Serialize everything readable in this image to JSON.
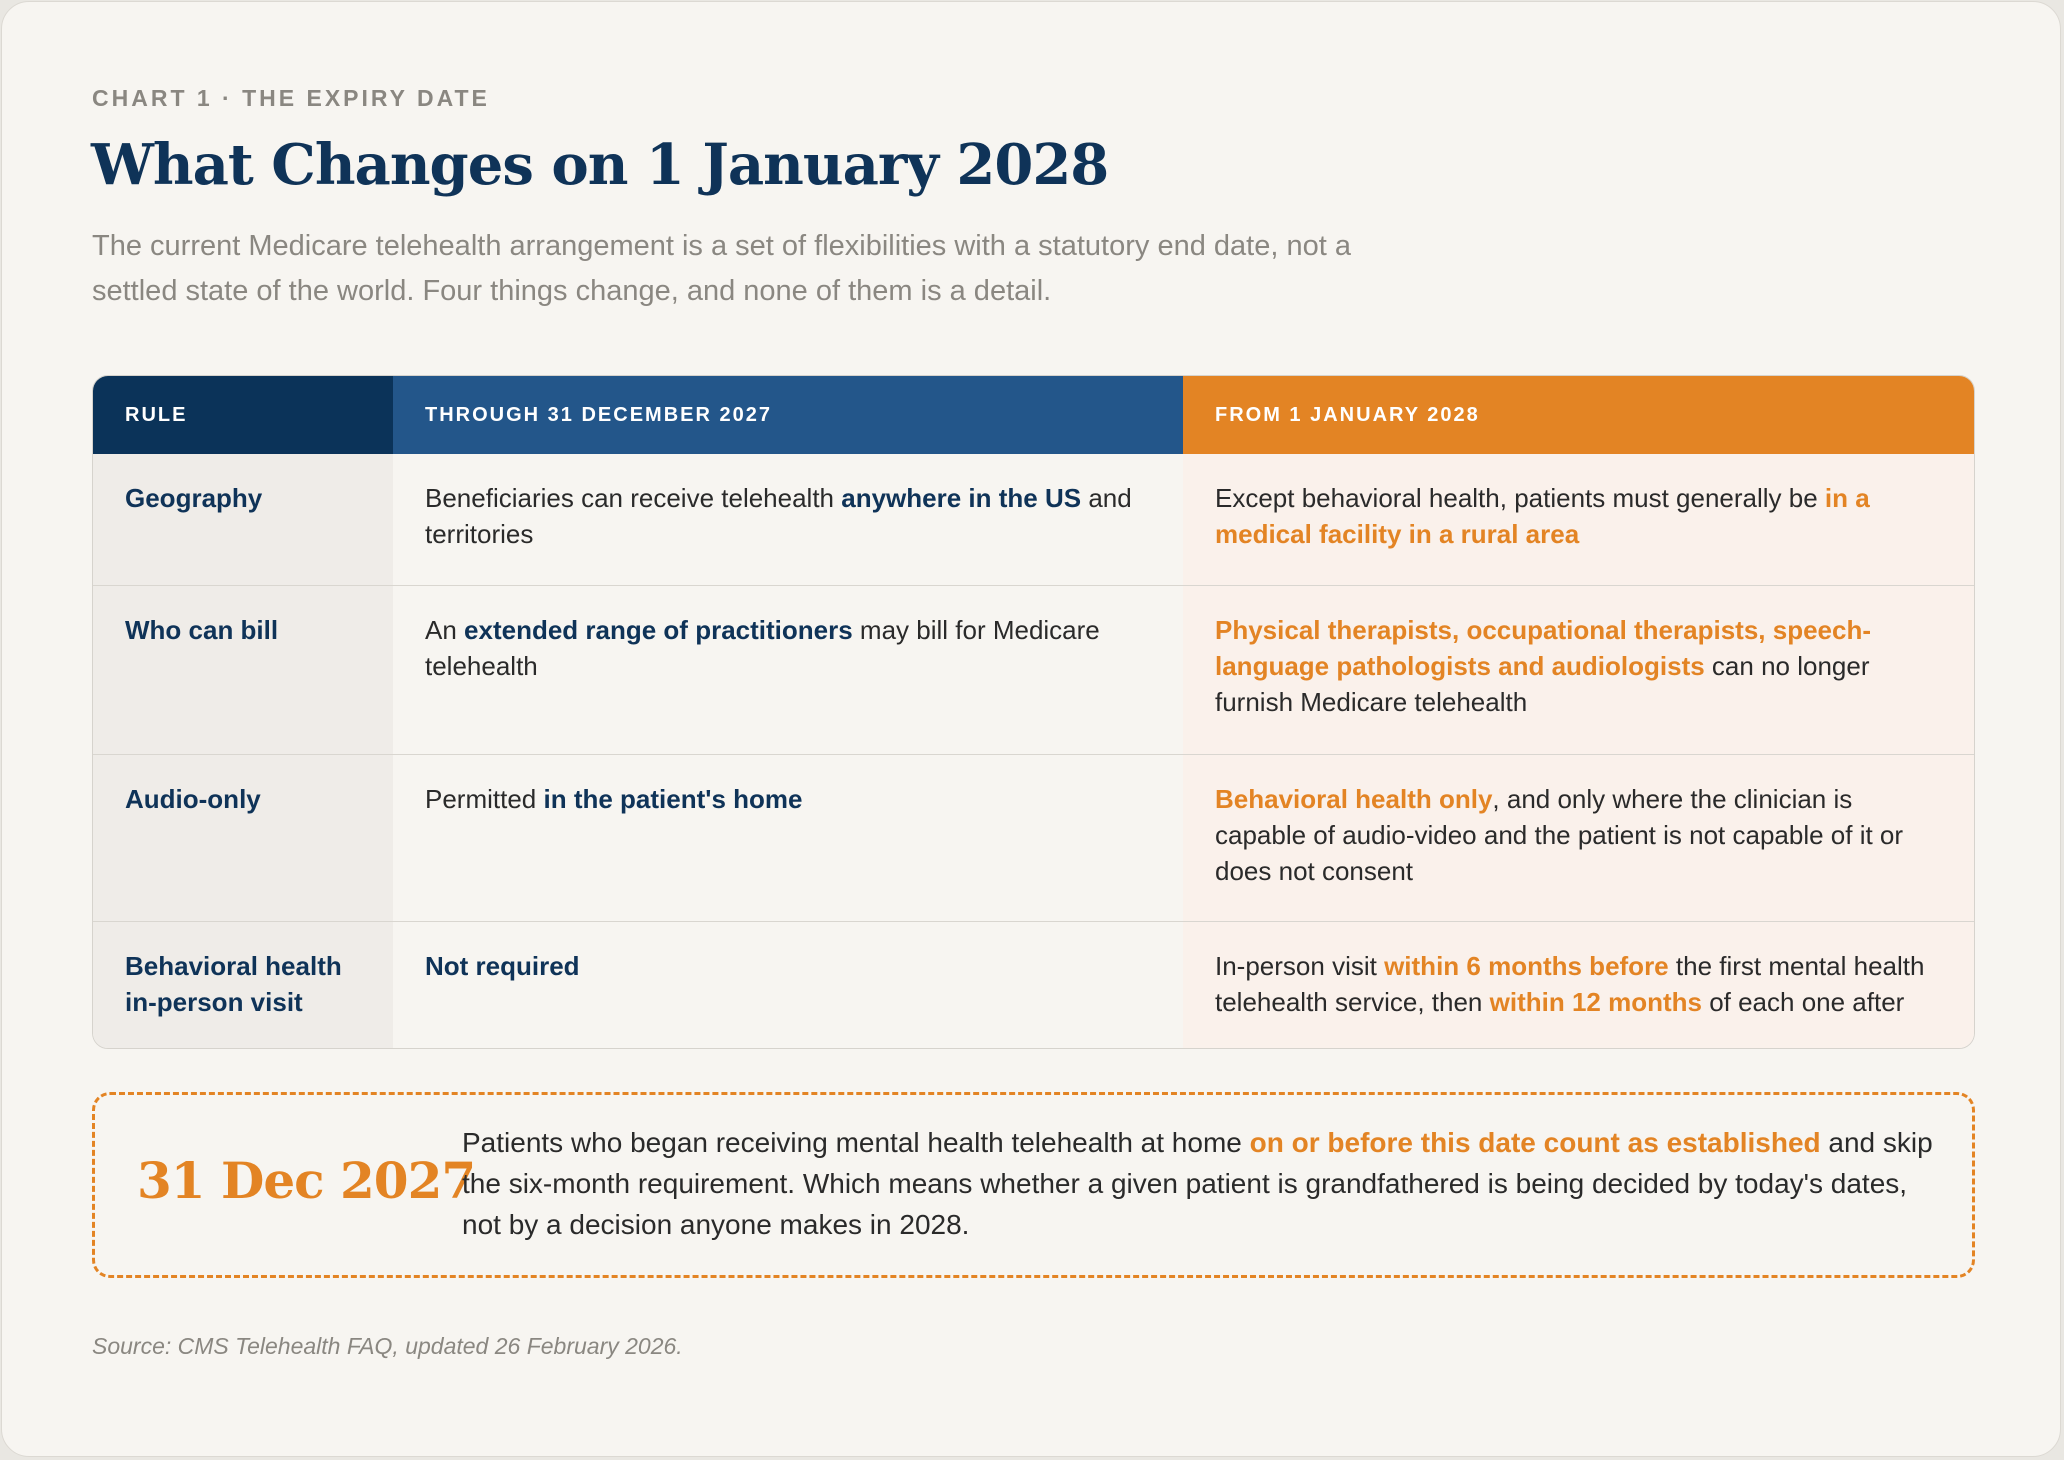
{
  "header": {
    "eyebrow": "CHART 1 · THE EXPIRY DATE",
    "title": "What Changes on 1 January 2028",
    "subtitle": "The current Medicare telehealth arrangement is a set of flexibilities with a statutory end date, not a settled state of the world. Four things change, and none of them is a detail."
  },
  "colors": {
    "navy": "#0b3359",
    "blue": "#23568a",
    "orange": "#e38424"
  },
  "table": {
    "columns": [
      "RULE",
      "THROUGH 31 DECEMBER 2027",
      "FROM 1 JANUARY 2028"
    ],
    "rows": [
      {
        "rule": "Geography",
        "through": [
          {
            "text": "Beneficiaries can receive telehealth "
          },
          {
            "text": "anywhere in the US",
            "hl": "b"
          },
          {
            "text": " and territories"
          }
        ],
        "from": [
          {
            "text": "Except behavioral health, patients must generally be "
          },
          {
            "text": "in a medical facility in a rural area",
            "hl": "o"
          }
        ]
      },
      {
        "rule": "Who can bill",
        "through": [
          {
            "text": "An "
          },
          {
            "text": "extended range of practitioners",
            "hl": "b"
          },
          {
            "text": " may bill for Medicare telehealth"
          }
        ],
        "from": [
          {
            "text": "Physical therapists, occupational therapists, speech-language pathologists and audiologists",
            "hl": "o"
          },
          {
            "text": " can no longer furnish Medicare telehealth"
          }
        ]
      },
      {
        "rule": "Audio-only",
        "through": [
          {
            "text": "Permitted "
          },
          {
            "text": "in the patient's home",
            "hl": "b"
          }
        ],
        "from": [
          {
            "text": "Behavioral health only",
            "hl": "o"
          },
          {
            "text": ", and only where the clinician is capable of audio-video and the patient is not capable of it or does not consent"
          }
        ]
      },
      {
        "rule": "Behavioral health in-person visit",
        "through": [
          {
            "text": "Not required",
            "hl": "b"
          }
        ],
        "from": [
          {
            "text": "In-person visit "
          },
          {
            "text": "within 6 months before",
            "hl": "o"
          },
          {
            "text": " the first mental health telehealth service, then "
          },
          {
            "text": "within 12 months",
            "hl": "o"
          },
          {
            "text": " of each one after"
          }
        ]
      }
    ]
  },
  "note": {
    "date": "31 Dec 2027",
    "text": [
      {
        "text": "Patients who began receiving mental health telehealth at home "
      },
      {
        "text": "on or before this date count as established",
        "hl": "o"
      },
      {
        "text": " and skip the six-month requirement. Which means whether a given patient is grandfathered is being decided by today's dates, not by a decision anyone makes in 2028."
      }
    ]
  },
  "source": "Source: CMS Telehealth FAQ, updated 26 February 2026."
}
